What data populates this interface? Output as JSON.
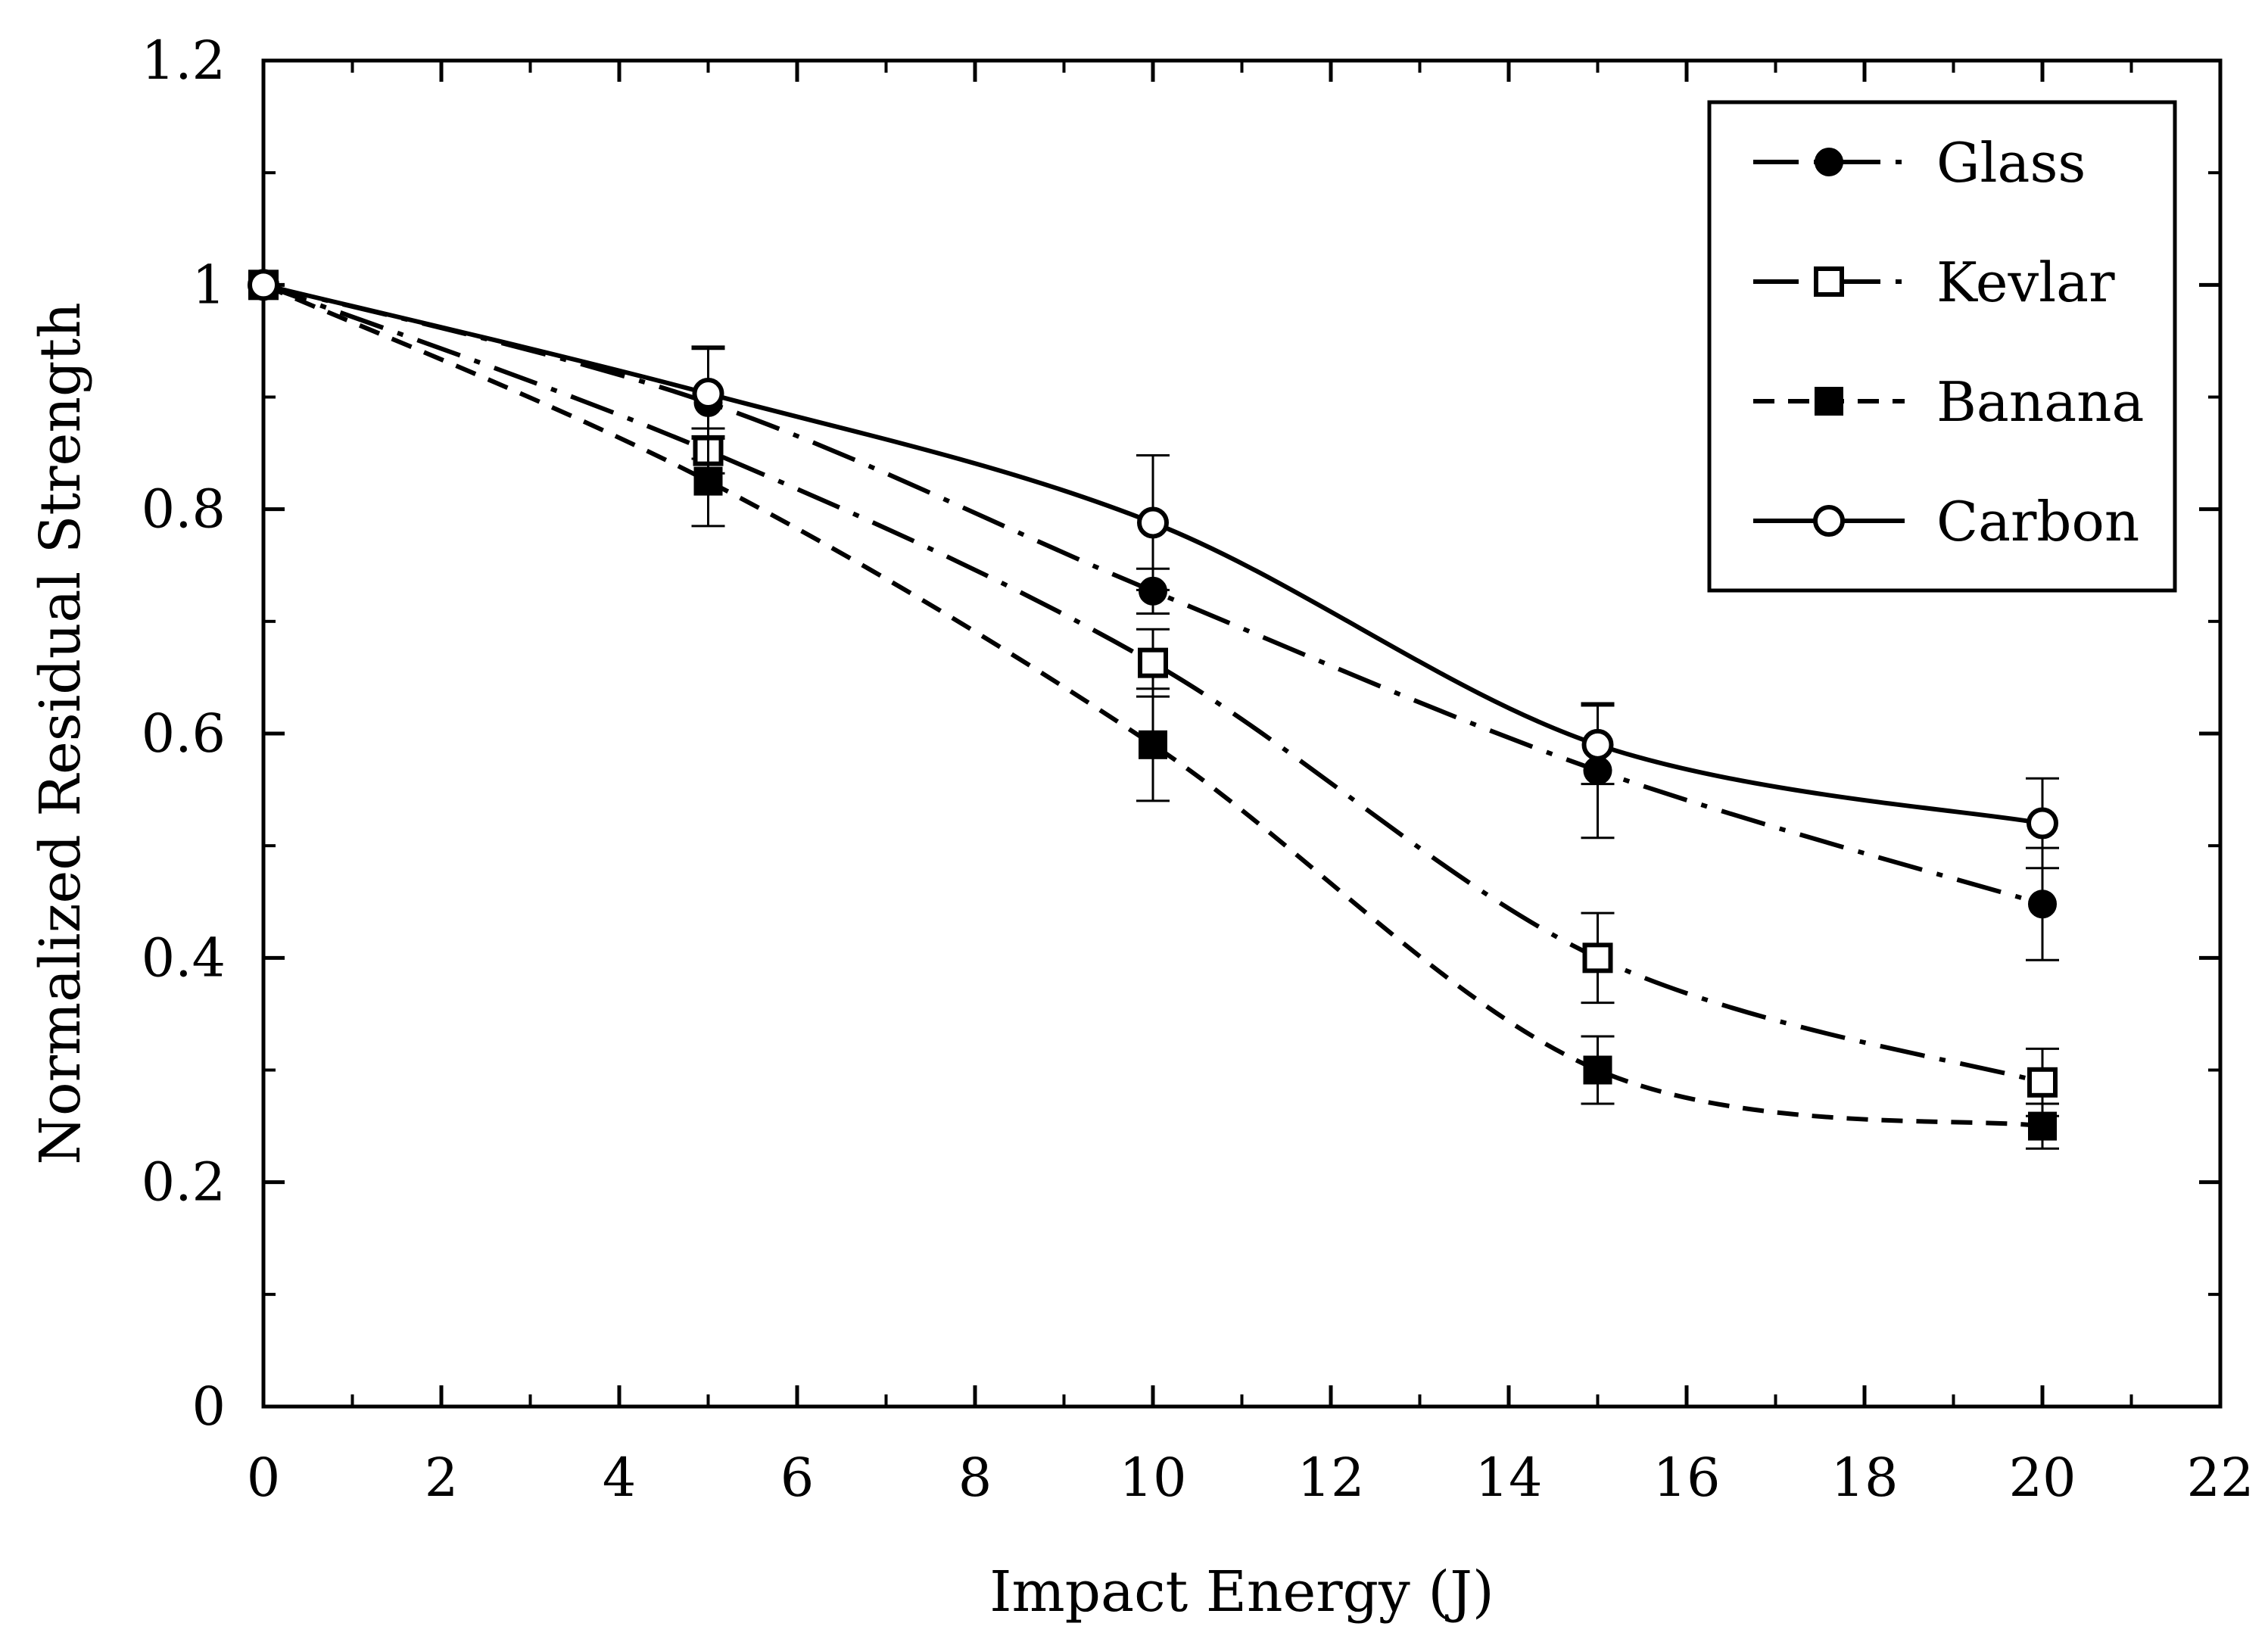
{
  "chart_data": {
    "type": "line",
    "title": "",
    "xlabel": "Impact Energy (J)",
    "ylabel": "Normalized Residual Strength",
    "xlim": [
      0,
      22
    ],
    "ylim": [
      0,
      1.2
    ],
    "x_ticks": [
      0,
      2,
      4,
      6,
      8,
      10,
      12,
      14,
      16,
      18,
      20,
      22
    ],
    "x_tick_labels": [
      "0",
      "2",
      "4",
      "6",
      "8",
      "10",
      "12",
      "14",
      "16",
      "18",
      "20",
      "22"
    ],
    "y_ticks": [
      0,
      0.2,
      0.4,
      0.6,
      0.8,
      1,
      1.2
    ],
    "y_tick_labels": [
      "0",
      "0.2",
      "0.4",
      "0.6",
      "0.8",
      "1",
      "1.2"
    ],
    "grid": false,
    "legend_position": "top-right",
    "x": [
      0,
      5,
      10,
      15,
      20
    ],
    "series": [
      {
        "name": "Glass",
        "marker": "filled-circle",
        "line": "long-dash-dot",
        "values": [
          1.0,
          0.895,
          0.727,
          0.567,
          0.448
        ],
        "errors": [
          0,
          0.05,
          0.02,
          0.06,
          0.05
        ]
      },
      {
        "name": "Kevlar",
        "marker": "open-square",
        "line": "long-dash-dot",
        "values": [
          1.0,
          0.852,
          0.663,
          0.4,
          0.289
        ],
        "errors": [
          0,
          0.02,
          0.03,
          0.04,
          0.03
        ]
      },
      {
        "name": "Banana",
        "marker": "filled-square",
        "line": "dashed",
        "values": [
          1.0,
          0.825,
          0.59,
          0.3,
          0.25
        ],
        "errors": [
          0,
          0.04,
          0.05,
          0.03,
          0.02
        ]
      },
      {
        "name": "Carbon",
        "marker": "open-circle",
        "line": "solid",
        "values": [
          1.0,
          0.903,
          0.788,
          0.59,
          0.52
        ],
        "errors": [
          0,
          0.04,
          0.06,
          0.035,
          0.04
        ]
      }
    ]
  },
  "colors": {
    "ink": "#000000",
    "background": "#ffffff"
  }
}
